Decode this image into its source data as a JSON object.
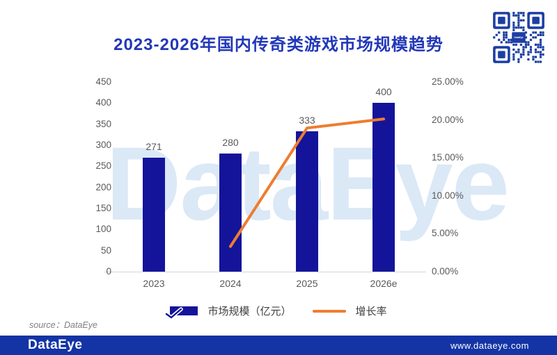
{
  "page": {
    "title": "2023-2026年国内传奇类游戏市场规模趋势"
  },
  "chart_data": {
    "type": "bar",
    "title": "2023-2026年国内传奇类游戏市场规模趋势",
    "categories": [
      "2023",
      "2024",
      "2025",
      "2026e"
    ],
    "series": [
      {
        "name": "市场规模（亿元）",
        "type": "bar",
        "values": [
          271,
          280,
          333,
          400
        ],
        "data_labels": [
          "271",
          "280",
          "333",
          "400"
        ]
      },
      {
        "name": "增长率",
        "type": "line",
        "unit": "%",
        "values": [
          null,
          3.32,
          18.93,
          20.12
        ]
      }
    ],
    "left_axis": {
      "min": 0,
      "max": 450,
      "step": 50,
      "ticks": [
        "0",
        "50",
        "100",
        "150",
        "200",
        "250",
        "300",
        "350",
        "400",
        "450"
      ]
    },
    "right_axis": {
      "min": 0,
      "max": 25,
      "step": 5,
      "ticks": [
        "0.00%",
        "5.00%",
        "10.00%",
        "15.00%",
        "20.00%",
        "25.00%"
      ]
    },
    "grid": false,
    "legend_position": "bottom"
  },
  "colors": {
    "bar": "#14149B",
    "line": "#ED7D31",
    "title": "#2238B8",
    "axis_text": "#595959",
    "footer_bg": "#1434A6",
    "qr_blue": "#1D3EA3",
    "watermark": "#dbe8f6"
  },
  "watermark": {
    "text": "DataEye"
  },
  "source": {
    "text": "source：DataEye"
  },
  "footer": {
    "logo": "DataEye",
    "url": "www.dataeye.com"
  },
  "qr": {
    "label": "dataeye-qr-code",
    "center_logo": "DataEye"
  }
}
